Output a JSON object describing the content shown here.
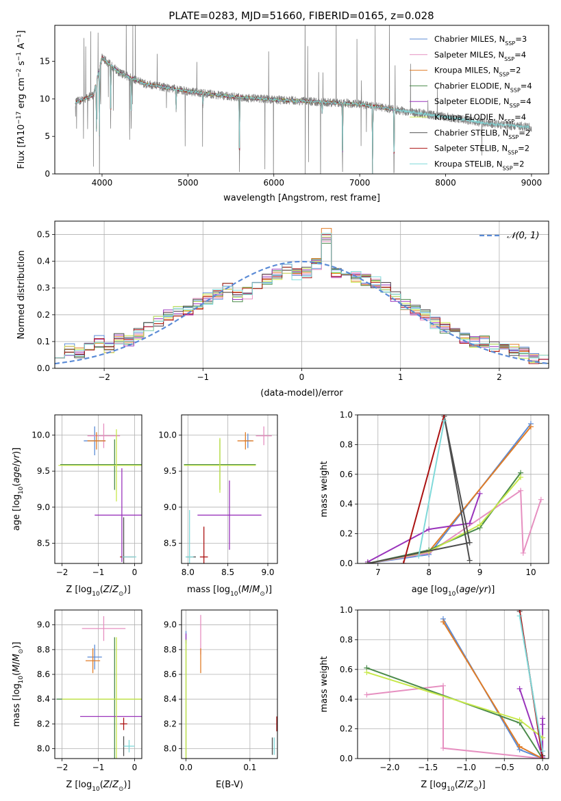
{
  "figure_title": "PLATE=0283, MJD=51660, FIBERID=0165, z=0.028",
  "series_names": [
    "Chabrier MILES, N<sub>SSP</sub>=3",
    "Salpeter MILES, N<sub>SSP</sub>=4",
    "Kroupa MILES, N<sub>SSP</sub>=2",
    "Chabrier ELODIE, N<sub>SSP</sub>=4",
    "Salpeter ELODIE, N<sub>SSP</sub>=4",
    "Kroupa ELODIE, N<sub>SSP</sub>=4",
    "Chabrier STELIB, N<sub>SSP</sub>=2",
    "Salpeter STELIB, N<sub>SSP</sub>=2",
    "Kroupa STELIB, N<sub>SSP</sub>=2"
  ],
  "series_colors": [
    "#5b8bd6",
    "#e68fc0",
    "#e07c26",
    "#4a8a4a",
    "#9933bb",
    "#c7e84a",
    "#4d4d4d",
    "#aa1111",
    "#7fd9d9"
  ],
  "chart_data": [
    {
      "type": "line",
      "id": "spectrum",
      "xlabel": "wavelength [Angstrom, rest frame]",
      "ylabel": "Flux [fλ10^-17 erg cm^-2 s^-1 A^-1]",
      "xlim": [
        3450,
        9200
      ],
      "ylim": [
        0,
        19.8
      ],
      "xticks": [
        4000,
        5000,
        6000,
        7000,
        8000,
        9000
      ],
      "yticks": [
        0,
        5,
        10,
        15
      ],
      "grid": false,
      "legend": "top-right",
      "data_color": "#808080",
      "continuum": {
        "x": [
          3690,
          3900,
          4000,
          4200,
          4500,
          5000,
          5500,
          6000,
          6500,
          7000,
          7500,
          8000,
          8500,
          9000
        ],
        "y": [
          9.5,
          10.5,
          15.5,
          13.5,
          12.0,
          11.0,
          10.3,
          9.9,
          9.6,
          9.3,
          8.4,
          7.6,
          6.7,
          6.2
        ]
      },
      "data_range": [
        3690,
        9000
      ],
      "models_range": [
        3690,
        7420
      ],
      "extended_model_range": [
        7420,
        8970
      ],
      "notable_dips": [
        [
          3935,
          4.7
        ],
        [
          3970,
          5.2
        ],
        [
          4100,
          5.8
        ],
        [
          4340,
          6.4
        ],
        [
          4862,
          8.5
        ],
        [
          5175,
          9.0
        ],
        [
          5600,
          0.0
        ],
        [
          6563,
          7.9
        ],
        [
          6800,
          0.0
        ],
        [
          7150,
          0.0
        ],
        [
          7400,
          0.0
        ]
      ]
    },
    {
      "type": "line",
      "id": "residuals",
      "xlabel": "(data-model)/error",
      "ylabel": "Normed distribution",
      "xlim": [
        -2.5,
        2.5
      ],
      "ylim": [
        0,
        0.55
      ],
      "xticks": [
        -2,
        -1,
        0,
        1,
        2
      ],
      "yticks": [
        0.0,
        0.1,
        0.2,
        0.3,
        0.4,
        0.5
      ],
      "grid": true,
      "legend": "top-right",
      "gaussian_label": "𝒩(0, 1)",
      "gaussian_color": "#5b8bd6",
      "bins_lo": -2.5,
      "bins_hi": 2.5,
      "n_bins": 50,
      "histogram": [
        0.06,
        0.07,
        0.06,
        0.09,
        0.1,
        0.08,
        0.11,
        0.1,
        0.13,
        0.15,
        0.18,
        0.2,
        0.21,
        0.22,
        0.24,
        0.26,
        0.28,
        0.3,
        0.27,
        0.28,
        0.3,
        0.33,
        0.35,
        0.37,
        0.35,
        0.36,
        0.39,
        0.48,
        0.36,
        0.35,
        0.34,
        0.33,
        0.32,
        0.3,
        0.27,
        0.24,
        0.22,
        0.2,
        0.17,
        0.15,
        0.13,
        0.11,
        0.1,
        0.1,
        0.08,
        0.08,
        0.07,
        0.06,
        0.04,
        0.03
      ]
    },
    {
      "type": "scatter",
      "id": "age-vs-Z",
      "xlabel": "Z [log10(Z/Z⊙)]",
      "ylabel": "age [log10(age/yr)]",
      "xlim": [
        -2.2,
        0.2
      ],
      "ylim": [
        8.22,
        10.28
      ],
      "xticks": [
        -2,
        -1,
        0
      ],
      "yticks": [
        8.5,
        9.0,
        9.5,
        10.0
      ],
      "grid": true,
      "points": [
        {
          "series": 0,
          "x": -1.1,
          "xerr": 0.3,
          "y": 9.92,
          "yerr": 0.2
        },
        {
          "series": 1,
          "x": -0.85,
          "xerr": 0.45,
          "y": 9.99,
          "yerr": 0.17
        },
        {
          "series": 2,
          "x": -1.05,
          "xerr": 0.25,
          "y": 9.92,
          "yerr": 0.12
        },
        {
          "series": 3,
          "x": -0.55,
          "xerr": 1.5,
          "y": 9.59,
          "yerr": 0.35
        },
        {
          "series": 4,
          "x": -0.35,
          "xerr": 0.75,
          "y": 8.89,
          "yerr": 0.65
        },
        {
          "series": 5,
          "x": -0.5,
          "xerr": 1.6,
          "y": 9.58,
          "yerr": 0.5
        },
        {
          "series": 6,
          "x": -0.3,
          "xerr": 0.02,
          "y": 8.31,
          "yerr": 0.55
        },
        {
          "series": 7,
          "x": -0.2,
          "xerr": 0.2,
          "y": 8.31,
          "yerr": 0.0
        },
        {
          "series": 8,
          "x": -0.15,
          "xerr": 0.2,
          "y": 8.31,
          "yerr": 0.0
        }
      ]
    },
    {
      "type": "scatter",
      "id": "age-vs-mass",
      "xlabel": "mass [log10(M/M⊙)]",
      "ylabel": "",
      "xlim": [
        7.92,
        9.12
      ],
      "ylim": [
        8.22,
        10.28
      ],
      "xticks": [
        8.0,
        8.5,
        9.0
      ],
      "yticks": [
        8.5,
        9.0,
        9.5,
        10.0
      ],
      "grid": true,
      "points": [
        {
          "series": 0,
          "x": 8.75,
          "xerr": 0.05,
          "y": 9.92,
          "yerr": 0.1
        },
        {
          "series": 1,
          "x": 8.95,
          "xerr": 0.1,
          "y": 9.99,
          "yerr": 0.13
        },
        {
          "series": 2,
          "x": 8.72,
          "xerr": 0.1,
          "y": 9.92,
          "yerr": 0.12
        },
        {
          "series": 3,
          "x": 8.4,
          "xerr": 0.45,
          "y": 9.59,
          "yerr": 0.35
        },
        {
          "series": 4,
          "x": 8.52,
          "xerr": 0.4,
          "y": 8.89,
          "yerr": 0.48
        },
        {
          "series": 5,
          "x": 8.4,
          "xerr": 0.45,
          "y": 9.58,
          "yerr": 0.38
        },
        {
          "series": 6,
          "x": 8.04,
          "xerr": 0.06,
          "y": 8.31,
          "yerr": 0.0
        },
        {
          "series": 7,
          "x": 8.2,
          "xerr": 0.05,
          "y": 8.31,
          "yerr": 0.42
        },
        {
          "series": 8,
          "x": 8.02,
          "xerr": 0.05,
          "y": 8.31,
          "yerr": 0.65
        }
      ]
    },
    {
      "type": "line",
      "id": "mass-weight-vs-age",
      "xlabel": "age [log10(age/yr)]",
      "ylabel": "mass weight",
      "xlim": [
        6.6,
        10.35
      ],
      "ylim": [
        0,
        1
      ],
      "xticks": [
        7,
        8,
        9,
        10
      ],
      "yticks": [
        0.0,
        0.2,
        0.4,
        0.6,
        0.8,
        1.0
      ],
      "grid": true,
      "series": [
        {
          "series": 0,
          "x": [
            6.8,
            8.0,
            10.0
          ],
          "y": [
            0.0,
            0.06,
            0.94
          ]
        },
        {
          "series": 1,
          "x": [
            6.8,
            8.0,
            9.8,
            9.85,
            10.2
          ],
          "y": [
            0.0,
            0.07,
            0.49,
            0.07,
            0.43
          ]
        },
        {
          "series": 2,
          "x": [
            6.8,
            8.0,
            10.0
          ],
          "y": [
            0.0,
            0.08,
            0.92
          ]
        },
        {
          "series": 3,
          "x": [
            6.8,
            8.0,
            9.0,
            9.8
          ],
          "y": [
            0.0,
            0.09,
            0.24,
            0.61
          ]
        },
        {
          "series": 4,
          "x": [
            6.8,
            8.0,
            8.8,
            9.0
          ],
          "y": [
            0.01,
            0.23,
            0.27,
            0.47
          ]
        },
        {
          "series": 5,
          "x": [
            6.8,
            8.0,
            9.0,
            9.8
          ],
          "y": [
            0.0,
            0.08,
            0.26,
            0.58
          ]
        },
        {
          "series": 6,
          "x": [
            6.8,
            8.8,
            8.3,
            8.8
          ],
          "y": [
            0.0,
            0.14,
            0.99,
            0.02
          ]
        },
        {
          "series": 7,
          "x": [
            7.5,
            8.3
          ],
          "y": [
            0.0,
            1.0
          ]
        },
        {
          "series": 8,
          "x": [
            7.8,
            8.3
          ],
          "y": [
            0.05,
            0.96
          ]
        }
      ]
    },
    {
      "type": "scatter",
      "id": "mass-vs-Z",
      "xlabel": "Z [log10(Z/Z⊙)]",
      "ylabel": "mass [log10(M/M⊙)]",
      "xlim": [
        -2.2,
        0.2
      ],
      "ylim": [
        7.92,
        9.12
      ],
      "xticks": [
        -2,
        -1,
        0
      ],
      "yticks": [
        8.0,
        8.2,
        8.4,
        8.6,
        8.8,
        9.0
      ],
      "grid": true,
      "points": [
        {
          "series": 0,
          "x": -1.1,
          "xerr": 0.2,
          "y": 8.74,
          "yerr": 0.1
        },
        {
          "series": 1,
          "x": -0.85,
          "xerr": 0.6,
          "y": 8.97,
          "yerr": 0.1
        },
        {
          "series": 2,
          "x": -1.15,
          "xerr": 0.2,
          "y": 8.71,
          "yerr": 0.1
        },
        {
          "series": 3,
          "x": -0.55,
          "xerr": 1.6,
          "y": 8.4,
          "yerr": 0.5
        },
        {
          "series": 4,
          "x": -0.6,
          "xerr": 0.9,
          "y": 8.26,
          "yerr": 0.0
        },
        {
          "series": 5,
          "x": -0.5,
          "xerr": 1.5,
          "y": 8.4,
          "yerr": 0.5
        },
        {
          "series": 6,
          "x": -0.3,
          "xerr": 0.0,
          "y": 8.02,
          "yerr": 0.08
        },
        {
          "series": 7,
          "x": -0.3,
          "xerr": 0.1,
          "y": 8.2,
          "yerr": 0.05
        },
        {
          "series": 8,
          "x": -0.15,
          "xerr": 0.15,
          "y": 8.02,
          "yerr": 0.05
        }
      ]
    },
    {
      "type": "scatter",
      "id": "mass-vs-EBV",
      "xlabel": "E(B-V)",
      "ylabel": "",
      "xlim": [
        -0.007,
        0.143
      ],
      "ylim": [
        7.92,
        9.12
      ],
      "xticks": [
        0.0,
        0.1
      ],
      "yticks": [
        8.0,
        8.2,
        8.4,
        8.6,
        8.8,
        9.0
      ],
      "grid": true,
      "points": [
        {
          "series": 0,
          "x": 0.0,
          "xerr": 0.0,
          "y": 8.9,
          "yerr": 0.05
        },
        {
          "series": 1,
          "x": 0.023,
          "xerr": 0.0,
          "y": 8.92,
          "yerr": 0.16
        },
        {
          "series": 2,
          "x": 0.023,
          "xerr": 0.0,
          "y": 8.71,
          "yerr": 0.1
        },
        {
          "series": 3,
          "x": 0.0,
          "xerr": 0.0,
          "y": 8.4,
          "yerr": 0.48
        },
        {
          "series": 4,
          "x": 0.0,
          "xerr": 0.0,
          "y": 8.9,
          "yerr": 0.03
        },
        {
          "series": 5,
          "x": 0.0,
          "xerr": 0.0,
          "y": 8.4,
          "yerr": 0.48
        },
        {
          "series": 6,
          "x": 0.135,
          "xerr": 0.0,
          "y": 8.02,
          "yerr": 0.07
        },
        {
          "series": 7,
          "x": 0.142,
          "xerr": 0.0,
          "y": 8.2,
          "yerr": 0.06
        },
        {
          "series": 8,
          "x": 0.138,
          "xerr": 0.0,
          "y": 8.02,
          "yerr": 0.07
        }
      ]
    },
    {
      "type": "line",
      "id": "mass-weight-vs-Z",
      "xlabel": "Z [log10(Z/Z⊙)]",
      "ylabel": "mass weight",
      "xlim": [
        -2.42,
        0.08
      ],
      "ylim": [
        0,
        1
      ],
      "xticks": [
        -2.0,
        -1.5,
        -1.0,
        -0.5,
        0.0
      ],
      "yticks": [
        0.0,
        0.2,
        0.4,
        0.6,
        0.8,
        1.0
      ],
      "grid": true,
      "series": [
        {
          "series": 0,
          "x": [
            -1.3,
            -0.3,
            0.0
          ],
          "y": [
            0.94,
            0.06,
            0.0
          ]
        },
        {
          "series": 1,
          "x": [
            -2.3,
            -1.3,
            -1.3,
            0.0
          ],
          "y": [
            0.43,
            0.49,
            0.07,
            0.0
          ]
        },
        {
          "series": 2,
          "x": [
            -1.3,
            -0.3,
            0.0
          ],
          "y": [
            0.92,
            0.08,
            0.0
          ]
        },
        {
          "series": 3,
          "x": [
            -2.3,
            -0.3,
            0.0
          ],
          "y": [
            0.61,
            0.24,
            0.0
          ]
        },
        {
          "series": 4,
          "x": [
            -0.3,
            0.0,
            0.0,
            0.0
          ],
          "y": [
            0.47,
            0.01,
            0.27,
            0.23
          ]
        },
        {
          "series": 5,
          "x": [
            -2.3,
            -0.3,
            0.0
          ],
          "y": [
            0.58,
            0.26,
            0.14
          ]
        },
        {
          "series": 6,
          "x": [
            -0.3,
            0.0
          ],
          "y": [
            0.99,
            0.02
          ]
        },
        {
          "series": 7,
          "x": [
            -0.3,
            0.0
          ],
          "y": [
            1.0,
            0.0
          ]
        },
        {
          "series": 8,
          "x": [
            -0.3,
            0.0
          ],
          "y": [
            0.96,
            0.05
          ]
        }
      ]
    }
  ]
}
